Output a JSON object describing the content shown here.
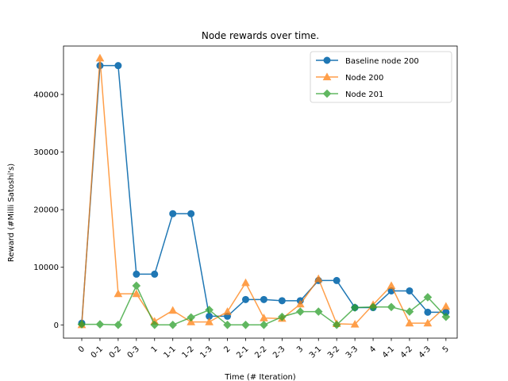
{
  "chart_data": {
    "type": "line",
    "title": "Node rewards over time.",
    "xlabel": "Time (# Iteration)",
    "ylabel": "Reward (#Milli Satoshi's)",
    "ylim": [
      -2300,
      48400
    ],
    "yticks": [
      0,
      10000,
      20000,
      30000,
      40000
    ],
    "grid": false,
    "legend_position": "top-right",
    "categories": [
      "0",
      "0-1",
      "0-2",
      "0-3",
      "1",
      "1-1",
      "1-2",
      "1-3",
      "2",
      "2-1",
      "2-2",
      "2-3",
      "3",
      "3-1",
      "3-2",
      "3-3",
      "4",
      "4-1",
      "4-2",
      "4-3",
      "5"
    ],
    "series": [
      {
        "name": "Baseline node 200",
        "color": "#1f77b4",
        "marker": "circle",
        "values": [
          300,
          45000,
          45000,
          8800,
          8800,
          19300,
          19300,
          1500,
          1500,
          4400,
          4400,
          4200,
          4200,
          7700,
          7700,
          3000,
          3000,
          5900,
          5900,
          2200,
          2200
        ]
      },
      {
        "name": "Node 200",
        "color": "#ff7f0e",
        "marker": "triangle",
        "values": [
          0,
          46300,
          5400,
          5400,
          600,
          2500,
          500,
          500,
          2300,
          7300,
          1200,
          1100,
          3600,
          8000,
          200,
          100,
          3500,
          6800,
          300,
          300,
          3200
        ]
      },
      {
        "name": "Node 201",
        "color": "#2ca02c",
        "marker": "diamond",
        "values": [
          100,
          100,
          0,
          6800,
          0,
          0,
          1300,
          2600,
          0,
          0,
          0,
          1400,
          2300,
          2300,
          0,
          3000,
          3100,
          3100,
          2300,
          4800,
          1400
        ]
      }
    ]
  }
}
